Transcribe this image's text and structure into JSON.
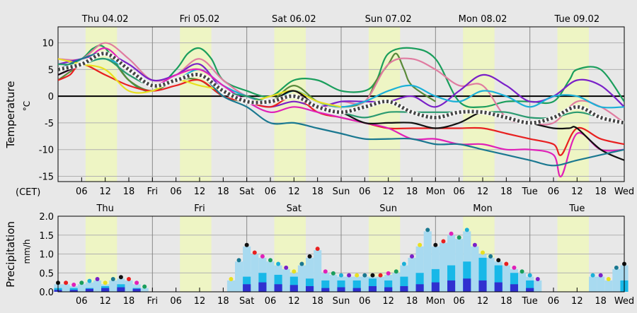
{
  "chart_data": [
    {
      "type": "line",
      "title": "",
      "ylabel": "Temperature",
      "yunit": "°C",
      "timezone_label": "(CET)",
      "ylim": [
        -16,
        13
      ],
      "yticks": [
        10,
        5,
        0,
        -5,
        -10,
        -15
      ],
      "day_headers": [
        "Thu 04.02",
        "Fri 05.02",
        "Sat 06.02",
        "Sun 07.02",
        "Mon 08.02",
        "Tue 09.02"
      ],
      "x_tick_labels": [
        "06",
        "12",
        "18",
        "Fri",
        "06",
        "12",
        "18",
        "Sat",
        "06",
        "12",
        "18",
        "Sun",
        "06",
        "12",
        "18",
        "Mon",
        "06",
        "12",
        "18",
        "Tue",
        "06",
        "12",
        "18",
        "Wed"
      ],
      "x_unit": "hours since Thu 00:00",
      "x_range": [
        0,
        144
      ],
      "daylight_hours": [
        [
          7,
          15
        ],
        [
          31,
          39
        ],
        [
          55,
          63
        ],
        [
          79,
          87
        ],
        [
          103,
          111
        ],
        [
          127,
          135
        ]
      ],
      "series": [
        {
          "name": "member-green",
          "color": "#1a9e5c",
          "x": [
            0,
            6,
            9,
            12,
            18,
            24,
            30,
            33,
            36,
            39,
            42,
            48,
            54,
            60,
            66,
            72,
            78,
            81,
            84,
            90,
            96,
            102,
            108,
            114,
            120,
            126,
            130,
            132,
            138,
            144
          ],
          "values": [
            5,
            7,
            9,
            9,
            3,
            1,
            5,
            8,
            9,
            7,
            3,
            1,
            0,
            3,
            3,
            1,
            1,
            3,
            8,
            9,
            7,
            -1,
            -2,
            -1,
            -1,
            -1,
            3,
            5,
            5,
            -1
          ]
        },
        {
          "name": "member-olive",
          "color": "#5a8a3a",
          "x": [
            0,
            6,
            12,
            18,
            24,
            30,
            36,
            42,
            48,
            54,
            60,
            66,
            72,
            78,
            81,
            84,
            86,
            88,
            90,
            96
          ],
          "values": [
            3,
            6,
            8,
            3,
            1,
            3,
            3,
            0,
            -1,
            -1,
            2,
            -1,
            -2,
            -1,
            3,
            6,
            8,
            5,
            2,
            -1
          ]
        },
        {
          "name": "member-pink",
          "color": "#e07ba0",
          "x": [
            0,
            6,
            12,
            18,
            24,
            30,
            36,
            42,
            48,
            54,
            60,
            66,
            72,
            78,
            84,
            90,
            96,
            102,
            108,
            114,
            120,
            126,
            132,
            138,
            144
          ],
          "values": [
            7,
            7,
            10,
            7,
            3,
            4,
            7,
            3,
            0,
            -1,
            1,
            -2,
            -1,
            -1,
            6,
            7,
            5,
            2,
            2,
            -4,
            -5,
            -5,
            -1,
            -2,
            -5
          ]
        },
        {
          "name": "member-purple",
          "color": "#7a20c8",
          "x": [
            0,
            6,
            12,
            18,
            24,
            30,
            36,
            42,
            48,
            54,
            60,
            66,
            72,
            78,
            84,
            90,
            96,
            102,
            108,
            114,
            120,
            126,
            132,
            138,
            144
          ],
          "values": [
            6,
            7,
            8,
            6,
            3,
            4,
            6,
            1,
            -1,
            -2,
            -1,
            -2,
            -1,
            -1,
            -1,
            0,
            -2,
            1,
            4,
            2,
            -1,
            0,
            3,
            2,
            -2
          ]
        },
        {
          "name": "member-cyan",
          "color": "#1ab0d8",
          "x": [
            0,
            6,
            12,
            18,
            24,
            30,
            36,
            42,
            48,
            54,
            60,
            66,
            72,
            78,
            84,
            90,
            96,
            102,
            108,
            114,
            120,
            126,
            132,
            138,
            144
          ],
          "values": [
            5,
            6,
            7,
            5,
            2,
            3,
            5,
            2,
            0,
            -1,
            1,
            -1,
            -2,
            -1,
            1,
            2,
            0,
            -1,
            1,
            0,
            -2,
            0,
            0,
            -2,
            -2
          ]
        },
        {
          "name": "member-red",
          "color": "#e82020",
          "x": [
            0,
            3,
            6,
            12,
            18,
            24,
            30,
            36,
            42,
            48,
            54,
            60,
            66,
            72,
            78,
            84,
            90,
            96,
            102,
            108,
            114,
            120,
            126,
            128,
            132,
            138,
            144
          ],
          "values": [
            3,
            4,
            6,
            4,
            2,
            1,
            2,
            3,
            0,
            -1,
            -2,
            0,
            -3,
            -4,
            -5,
            -6,
            -6,
            -6,
            -6,
            -6,
            -7,
            -8,
            -9,
            -11,
            -6,
            -8,
            -9
          ]
        },
        {
          "name": "member-magenta",
          "color": "#e020b8",
          "x": [
            0,
            6,
            12,
            18,
            24,
            30,
            36,
            42,
            48,
            54,
            60,
            66,
            72,
            78,
            84,
            90,
            96,
            102,
            108,
            114,
            120,
            126,
            128,
            132,
            138,
            144
          ],
          "values": [
            4,
            6,
            9,
            5,
            2,
            4,
            5,
            2,
            -1,
            -3,
            -2,
            -3,
            -4,
            -5,
            -6,
            -8,
            -8,
            -9,
            -9,
            -10,
            -10,
            -11,
            -15,
            -7,
            -10,
            -10
          ]
        },
        {
          "name": "member-yellow",
          "color": "#e8e020",
          "x": [
            0,
            6,
            12,
            18,
            24,
            30,
            36,
            42,
            48,
            54,
            60,
            66,
            72
          ],
          "values": [
            7,
            6,
            5,
            1,
            1,
            3,
            2,
            1,
            -1,
            0,
            1,
            -1,
            -2
          ]
        },
        {
          "name": "member-black",
          "color": "#111111",
          "x": [
            0,
            6,
            12,
            18,
            24,
            30,
            36,
            42,
            48,
            54,
            60,
            66,
            72,
            78,
            84,
            90,
            96,
            102,
            108,
            114,
            120,
            126,
            130,
            132,
            138,
            144
          ],
          "values": [
            4,
            6,
            8,
            5,
            2,
            3,
            4,
            1,
            -1,
            -1,
            1,
            -2,
            -3,
            -5,
            -5,
            -5,
            -6,
            -5,
            -3,
            -4,
            -5,
            -6,
            -6,
            -6,
            -10,
            -12
          ]
        },
        {
          "name": "member-teal",
          "color": "#1a7890",
          "x": [
            0,
            6,
            12,
            18,
            24,
            30,
            36,
            42,
            48,
            54,
            60,
            66,
            72,
            78,
            84,
            90,
            96,
            102,
            108,
            114,
            120,
            126,
            132,
            138,
            144
          ],
          "values": [
            5,
            7,
            8,
            5,
            2,
            3,
            4,
            0,
            -2,
            -5,
            -5,
            -6,
            -7,
            -8,
            -8,
            -8,
            -9,
            -9,
            -10,
            -11,
            -12,
            -13,
            -12,
            -11,
            -10
          ]
        },
        {
          "name": "member-seagreen",
          "color": "#2a9a70",
          "x": [
            0,
            6,
            12,
            18,
            24,
            30,
            36,
            42,
            48,
            54,
            60,
            66,
            72,
            78,
            84,
            90,
            96,
            102,
            108,
            114,
            120,
            126,
            132,
            138,
            144
          ],
          "values": [
            6,
            6,
            7,
            4,
            2,
            3,
            4,
            1,
            0,
            -1,
            0,
            -2,
            -3,
            -4,
            -3,
            -3,
            -3,
            -3,
            -3,
            -3,
            -4,
            -4,
            -3,
            -4,
            -5
          ]
        },
        {
          "name": "ensemble-mean",
          "color": "#444444",
          "dashed": true,
          "x": [
            0,
            6,
            12,
            18,
            24,
            30,
            36,
            42,
            48,
            54,
            60,
            66,
            72,
            78,
            84,
            90,
            96,
            102,
            108,
            114,
            120,
            126,
            132,
            138,
            144
          ],
          "values": [
            5,
            6,
            8,
            5,
            2,
            3,
            4,
            1,
            -1,
            -1,
            0,
            -2,
            -3,
            -2,
            -1,
            -3,
            -4,
            -3,
            -3,
            -4,
            -5,
            -4,
            -2,
            -4,
            -5
          ]
        }
      ]
    },
    {
      "type": "bar",
      "title": "",
      "ylabel": "Precipitation",
      "yunit": "mm/h",
      "ylim": [
        0,
        2.0
      ],
      "yticks": [
        "2.0",
        "1.5",
        "1.0",
        "0.5",
        "0.0"
      ],
      "yticks_values": [
        2.0,
        1.5,
        1.0,
        0.5,
        0.0
      ],
      "day_headers": [
        "Thu",
        "Fri",
        "Sat",
        "Sun",
        "Mon",
        "Tue"
      ],
      "x_tick_labels": [
        "06",
        "12",
        "18",
        "Fri",
        "06",
        "12",
        "18",
        "Sat",
        "06",
        "12",
        "18",
        "Sun",
        "06",
        "12",
        "18",
        "Mon",
        "06",
        "12",
        "18",
        "Tue",
        "06",
        "12",
        "18",
        "Wed"
      ],
      "x_unit": "hours since Thu 00:00",
      "x_range": [
        0,
        144
      ],
      "daylight_hours": [
        [
          7,
          15
        ],
        [
          31,
          39
        ],
        [
          55,
          63
        ],
        [
          79,
          87
        ],
        [
          103,
          111
        ],
        [
          127,
          135
        ]
      ],
      "series": [
        {
          "name": "upper-envelope",
          "color": "#a8daf0",
          "x": [
            0,
            2,
            4,
            6,
            8,
            10,
            12,
            14,
            16,
            18,
            20,
            22,
            24,
            26,
            28,
            30,
            32,
            34,
            36,
            38,
            40,
            42,
            44,
            46,
            48,
            50,
            52,
            54,
            56,
            58,
            60,
            62,
            64,
            66,
            68,
            70,
            72,
            74,
            76,
            78,
            80,
            82,
            84,
            86,
            88,
            90,
            92,
            94,
            96,
            98,
            100,
            102,
            104,
            106,
            108,
            110,
            112,
            114,
            116,
            118,
            120,
            122,
            124,
            126,
            128,
            130,
            132,
            134,
            136,
            138,
            140,
            142,
            144
          ],
          "values": [
            0.2,
            0.2,
            0.15,
            0.2,
            0.25,
            0.3,
            0.2,
            0.3,
            0.35,
            0.3,
            0.2,
            0.1,
            0,
            0,
            0,
            0,
            0,
            0,
            0,
            0,
            0,
            0,
            0.3,
            0.8,
            1.2,
            1.0,
            0.9,
            0.8,
            0.7,
            0.6,
            0.5,
            0.7,
            0.9,
            1.1,
            0.5,
            0.45,
            0.4,
            0.4,
            0.4,
            0.4,
            0.4,
            0.4,
            0.45,
            0.5,
            0.7,
            0.9,
            1.2,
            1.6,
            1.2,
            1.3,
            1.5,
            1.4,
            1.6,
            1.2,
            1.0,
            0.9,
            0.8,
            0.7,
            0.6,
            0.5,
            0.4,
            0.3,
            0,
            0,
            0,
            0,
            0,
            0,
            0.4,
            0.4,
            0.3,
            0.6,
            0.7
          ]
        },
        {
          "name": "mid-envelope",
          "color": "#18b8e8",
          "x": [
            0,
            4,
            8,
            12,
            16,
            20,
            24,
            44,
            48,
            52,
            56,
            60,
            64,
            68,
            72,
            76,
            80,
            84,
            88,
            92,
            96,
            100,
            104,
            108,
            112,
            116,
            120,
            124,
            140,
            144
          ],
          "values": [
            0.1,
            0.1,
            0.1,
            0.15,
            0.2,
            0.1,
            0,
            0,
            0.4,
            0.5,
            0.45,
            0.4,
            0.35,
            0.3,
            0.3,
            0.3,
            0.35,
            0.3,
            0.4,
            0.5,
            0.6,
            0.7,
            0.8,
            0.9,
            0.7,
            0.5,
            0.3,
            0,
            0,
            0.3
          ]
        },
        {
          "name": "core",
          "color": "#3030d0",
          "x": [
            0,
            4,
            8,
            12,
            16,
            20,
            24,
            44,
            48,
            52,
            56,
            60,
            64,
            68,
            72,
            76,
            80,
            84,
            88,
            92,
            96,
            100,
            104,
            108,
            112,
            116,
            120,
            124,
            144
          ],
          "values": [
            0.05,
            0.05,
            0.08,
            0.1,
            0.12,
            0.08,
            0,
            0,
            0.2,
            0.25,
            0.2,
            0.18,
            0.15,
            0.1,
            0.12,
            0.1,
            0.15,
            0.12,
            0.15,
            0.2,
            0.25,
            0.3,
            0.35,
            0.3,
            0.25,
            0.2,
            0.1,
            0,
            0
          ]
        }
      ]
    }
  ]
}
